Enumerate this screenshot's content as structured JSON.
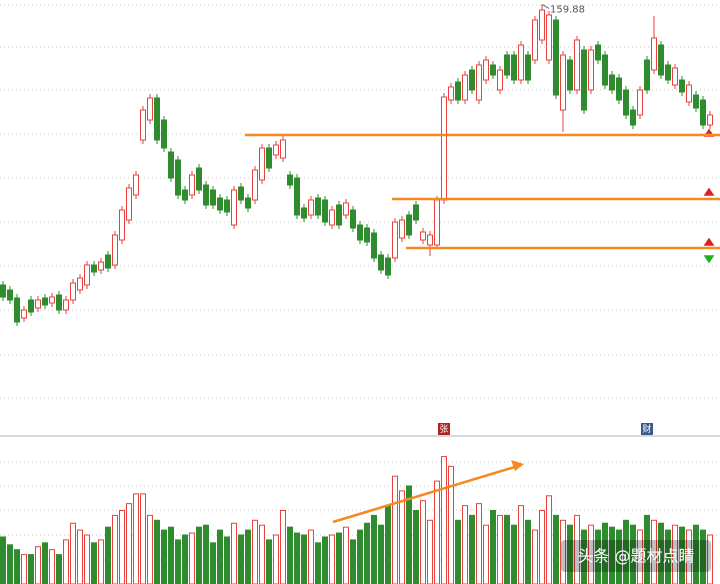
{
  "chart_data": {
    "type": "candlestick",
    "open": [
      89.75,
      88.5,
      86.5,
      81.5,
      86,
      84,
      86.5,
      85.25,
      87.25,
      83.5,
      86,
      88.5,
      89.75,
      94.75,
      93.5,
      97.25,
      94.75,
      101,
      106,
      112.25,
      126,
      131,
      136.5,
      131,
      123,
      121,
      113.5,
      112.25,
      119,
      114.75,
      113.5,
      111.5,
      111,
      104.75,
      114.25,
      111.5,
      111,
      116,
      124,
      122.25,
      121.5,
      117.25,
      116.5,
      109,
      107.25,
      111.5,
      111,
      104.75,
      109.75,
      107.25,
      108.5,
      104.75,
      104,
      102.75,
      97.25,
      96.5,
      96.5,
      101.5,
      107.25,
      109.75,
      101,
      99.75,
      99.75,
      111,
      136,
      140.5,
      136,
      143.5,
      136,
      141,
      144.75,
      138.5,
      147.25,
      147.25,
      141,
      147.25,
      146,
      151,
      146,
      156,
      133.5,
      146,
      138.5,
      148.5,
      138.5,
      149.75,
      147.25,
      142.25,
      141.5,
      138.5,
      133.5,
      132.25,
      146,
      143.5,
      149.75,
      144.75,
      139.75,
      141,
      135.5,
      137.25,
      136,
      129.75
    ],
    "high": [
      90.75,
      89.5,
      87.5,
      84.5,
      87,
      87,
      87.5,
      87.75,
      88.25,
      87,
      91.25,
      92.5,
      95.75,
      95.75,
      96.5,
      98.25,
      103.25,
      109.5,
      115,
      118.25,
      134.5,
      137.5,
      137.5,
      132,
      124,
      122,
      114.5,
      118.25,
      120,
      115.75,
      114.5,
      112.5,
      112,
      114.5,
      115.25,
      112.5,
      119.5,
      125,
      125,
      125.75,
      127.25,
      118.25,
      117.5,
      110,
      112,
      112.5,
      112,
      109.5,
      110.75,
      111.25,
      109.5,
      105.75,
      105,
      103.75,
      98.25,
      97.5,
      106.5,
      107,
      108.25,
      110.75,
      104,
      103.25,
      112,
      137.75,
      140.25,
      141.5,
      143.25,
      144.5,
      145.75,
      147,
      145.75,
      144.5,
      148.25,
      148.25,
      150.75,
      148.25,
      157,
      159.88,
      158.25,
      157,
      148.25,
      147,
      152,
      149.5,
      149.5,
      150.75,
      148.25,
      143.25,
      142.5,
      139.5,
      134.5,
      139.5,
      147,
      157,
      150.75,
      145.75,
      145,
      142,
      140.75,
      138.25,
      137,
      133.25
    ],
    "low": [
      85.75,
      85,
      79.5,
      80.5,
      82,
      83,
      83.75,
      84.25,
      82.5,
      82.5,
      85,
      87.5,
      88.75,
      92,
      92.5,
      93,
      93.75,
      100,
      105,
      111.25,
      125,
      130,
      125,
      123,
      115.5,
      111.25,
      110,
      111.25,
      112.5,
      108.75,
      108.75,
      107.5,
      107,
      103.75,
      110,
      108,
      110,
      115,
      118,
      121.25,
      120.5,
      113.75,
      106.25,
      105.5,
      106.25,
      106.25,
      104.5,
      103.75,
      103.75,
      106.25,
      103,
      100,
      99.5,
      95.5,
      92.5,
      91.25,
      95.5,
      100.5,
      101.25,
      105,
      100,
      97,
      98.75,
      110,
      135,
      135,
      135,
      137.5,
      135,
      140,
      141.25,
      137.5,
      141.25,
      140,
      140,
      140,
      145,
      150,
      145,
      136.25,
      128,
      137.5,
      137.5,
      132.5,
      137.5,
      145,
      138.75,
      137.5,
      135,
      131.25,
      128.75,
      131.25,
      137.5,
      142.5,
      141.25,
      140,
      138.75,
      137,
      134.5,
      133,
      128.75,
      128.75
    ],
    "close": [
      86.75,
      86,
      80.5,
      83.5,
      83,
      86,
      84.75,
      86.75,
      83.5,
      86,
      90.25,
      91.5,
      94.75,
      93,
      95.5,
      94,
      102.25,
      108.5,
      114,
      117.25,
      133.5,
      136.5,
      126,
      124,
      116.5,
      112.25,
      111,
      117.25,
      113.5,
      109.75,
      109.75,
      108.5,
      108,
      113.5,
      111,
      109,
      118.5,
      124,
      119,
      124.75,
      126,
      114.75,
      107.25,
      106.5,
      111,
      107.25,
      105.5,
      108.5,
      104.75,
      110.25,
      104,
      101,
      100.5,
      96.5,
      93.5,
      92.25,
      105.5,
      106,
      102.25,
      106,
      103,
      102.25,
      111,
      136.75,
      139.25,
      136,
      142.25,
      138.5,
      144.75,
      146,
      142.25,
      143.5,
      142.25,
      141,
      149.75,
      141,
      156,
      158.5,
      157.25,
      137.25,
      147.25,
      138.5,
      151,
      133.5,
      148.5,
      146,
      139.75,
      138.5,
      136,
      132.25,
      129.75,
      138.5,
      138.5,
      151.5,
      142.25,
      141,
      144,
      138,
      139.75,
      134,
      129.75,
      132.25
    ],
    "volume": [
      48,
      40,
      35,
      30,
      30,
      38,
      42,
      35,
      30,
      45,
      62,
      55,
      50,
      42,
      45,
      58,
      70,
      75,
      82,
      92,
      92,
      70,
      65,
      55,
      58,
      45,
      50,
      52,
      58,
      60,
      42,
      55,
      48,
      62,
      50,
      55,
      65,
      60,
      45,
      50,
      75,
      58,
      52,
      50,
      55,
      42,
      48,
      50,
      52,
      58,
      45,
      55,
      62,
      70,
      60,
      80,
      110,
      95,
      100,
      75,
      85,
      65,
      105,
      130,
      120,
      65,
      80,
      70,
      82,
      60,
      75,
      70,
      70,
      60,
      80,
      65,
      55,
      75,
      90,
      70,
      65,
      60,
      70,
      55,
      60,
      55,
      62,
      58,
      55,
      65,
      60,
      55,
      70,
      65,
      62,
      55,
      60,
      58,
      55,
      60,
      55,
      50
    ],
    "ylim": [
      61,
      161
    ],
    "volume_ylim": [
      0,
      150
    ],
    "up_color": "#e8413e",
    "down_color": "#2e8b2e",
    "grid": true,
    "levels": [
      127.25,
      111.25,
      99
    ],
    "level_color": "#f5891f",
    "annotations": [
      "张",
      "财"
    ],
    "watermark": "头条 @题材点睛"
  }
}
